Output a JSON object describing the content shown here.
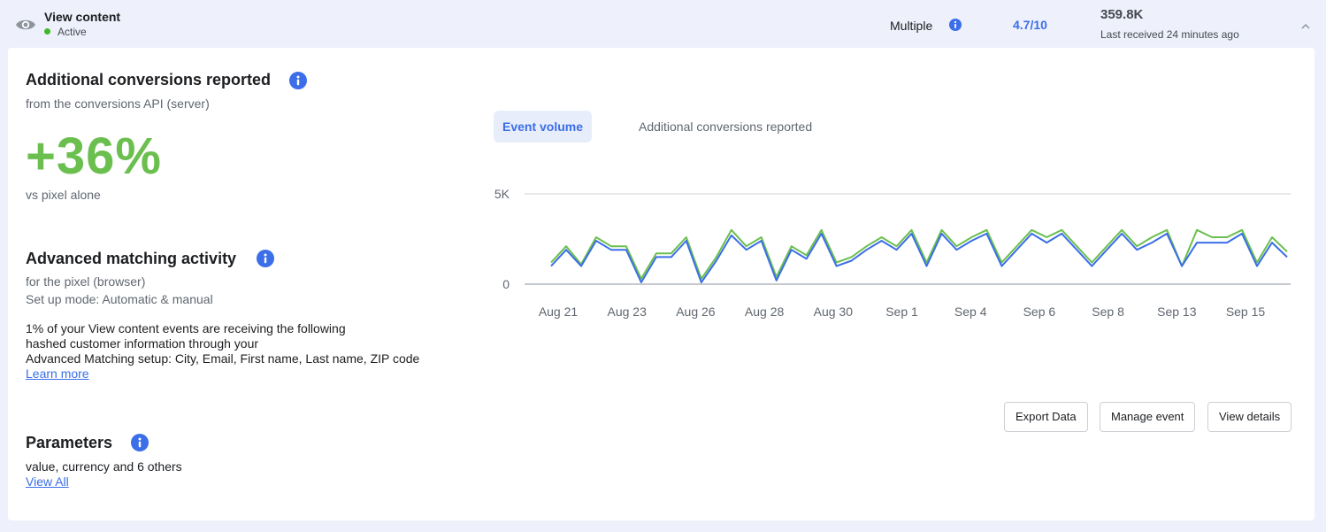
{
  "header": {
    "event_name": "View content",
    "status": "Active",
    "integration": "Multiple",
    "score": "4.7/10",
    "total_events": "359.8K",
    "last_received": "Last received 24 minutes ago"
  },
  "conversions": {
    "title": "Additional conversions reported",
    "subtitle": "from the conversions API (server)",
    "value": "+36%",
    "comparison": "vs pixel alone"
  },
  "advanced_matching": {
    "title": "Advanced matching activity",
    "subtitle": "for the pixel (browser)",
    "setup_mode": "Set up mode: Automatic & manual",
    "description_line1": "1% of your View content events are  receiving the following",
    "description_line2": "hashed customer information through your",
    "description_line3": "Advanced Matching setup: City, Email, First name, Last name, ZIP code",
    "learn_more": "Learn more"
  },
  "parameters": {
    "title": "Parameters",
    "summary": "value, currency and 6 others",
    "view_all": "View All"
  },
  "tabs": [
    {
      "label": "Event volume",
      "active": true
    },
    {
      "label": "Additional conversions reported",
      "active": false
    }
  ],
  "actions": {
    "export": "Export Data",
    "manage": "Manage event",
    "details": "View details"
  },
  "colors": {
    "accent_blue": "#3b6ee8",
    "accent_green": "#6bbf4e",
    "status_active": "#42b72a"
  },
  "chart_data": {
    "type": "line",
    "y_ticks": [
      "5K",
      "0"
    ],
    "ylim": [
      0,
      5000
    ],
    "x_tick_labels": [
      "Aug 21",
      "Aug 23",
      "Aug 26",
      "Aug 28",
      "Aug 30",
      "Sep 1",
      "Sep 4",
      "Sep 6",
      "Sep 8",
      "Sep 13",
      "Sep 15"
    ],
    "grid": true,
    "series": [
      {
        "color": "#6bbf4e",
        "values": [
          1200,
          2100,
          1100,
          2600,
          2100,
          2100,
          300,
          1700,
          1700,
          2600,
          300,
          1500,
          3000,
          2100,
          2600,
          400,
          2100,
          1600,
          3000,
          1200,
          1500,
          2100,
          2600,
          2100,
          3000,
          1200,
          3000,
          2100,
          2600,
          3000,
          1200,
          2100,
          3000,
          2600,
          3000,
          2100,
          1200,
          2100,
          3000,
          2100,
          2600,
          3000,
          1000,
          3000,
          2600,
          2600,
          3000,
          1200,
          2600,
          1800
        ]
      },
      {
        "color": "#3b6ee8",
        "values": [
          1000,
          1900,
          1000,
          2400,
          1900,
          1900,
          100,
          1500,
          1500,
          2400,
          100,
          1300,
          2700,
          1900,
          2400,
          200,
          1900,
          1400,
          2800,
          1000,
          1300,
          1900,
          2400,
          1900,
          2800,
          1000,
          2800,
          1900,
          2400,
          2800,
          1000,
          1900,
          2800,
          2300,
          2800,
          1900,
          1000,
          1900,
          2800,
          1900,
          2300,
          2800,
          1000,
          2300,
          2300,
          2300,
          2800,
          1000,
          2300,
          1500
        ]
      }
    ]
  }
}
